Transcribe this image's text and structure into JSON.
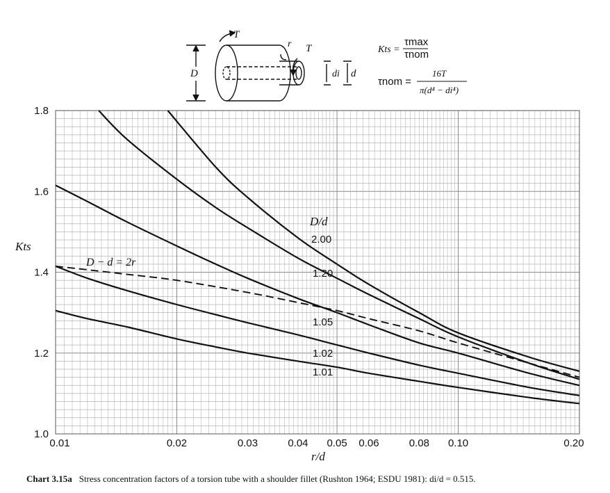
{
  "chart_data": {
    "type": "line",
    "xscale": "log",
    "xlim": [
      0.01,
      0.2
    ],
    "ylim": [
      1.0,
      1.8
    ],
    "xlabel": "r/d",
    "ylabel": "Kts",
    "grid": true,
    "x_ticks": [
      "0.01",
      "0.02",
      "0.03",
      "0.04",
      "0.05",
      "0.06",
      "0.08",
      "0.10",
      "0.20"
    ],
    "y_ticks": [
      "1.0",
      "1.2",
      "1.4",
      "1.6",
      "1.8"
    ],
    "legend_title": "D/d",
    "series": [
      {
        "name": "2.00",
        "style": "solid",
        "points": [
          [
            0.019,
            1.8
          ],
          [
            0.025,
            1.66
          ],
          [
            0.03,
            1.585
          ],
          [
            0.04,
            1.485
          ],
          [
            0.05,
            1.42
          ],
          [
            0.06,
            1.37
          ],
          [
            0.08,
            1.3
          ],
          [
            0.1,
            1.25
          ],
          [
            0.15,
            1.19
          ],
          [
            0.2,
            1.155
          ]
        ]
      },
      {
        "name": "1.20",
        "style": "solid",
        "points": [
          [
            0.0128,
            1.8
          ],
          [
            0.015,
            1.73
          ],
          [
            0.02,
            1.63
          ],
          [
            0.025,
            1.56
          ],
          [
            0.03,
            1.51
          ],
          [
            0.04,
            1.435
          ],
          [
            0.05,
            1.385
          ],
          [
            0.06,
            1.345
          ],
          [
            0.08,
            1.285
          ],
          [
            0.1,
            1.24
          ],
          [
            0.15,
            1.175
          ],
          [
            0.2,
            1.135
          ]
        ]
      },
      {
        "name": "1.05",
        "style": "solid",
        "points": [
          [
            0.01,
            1.615
          ],
          [
            0.012,
            1.575
          ],
          [
            0.015,
            1.525
          ],
          [
            0.02,
            1.465
          ],
          [
            0.025,
            1.42
          ],
          [
            0.03,
            1.385
          ],
          [
            0.04,
            1.335
          ],
          [
            0.05,
            1.3
          ],
          [
            0.06,
            1.27
          ],
          [
            0.08,
            1.225
          ],
          [
            0.1,
            1.2
          ],
          [
            0.15,
            1.15
          ],
          [
            0.2,
            1.12
          ]
        ]
      },
      {
        "name": "1.02",
        "style": "solid",
        "points": [
          [
            0.01,
            1.415
          ],
          [
            0.012,
            1.385
          ],
          [
            0.015,
            1.355
          ],
          [
            0.02,
            1.32
          ],
          [
            0.025,
            1.295
          ],
          [
            0.03,
            1.275
          ],
          [
            0.04,
            1.245
          ],
          [
            0.05,
            1.22
          ],
          [
            0.06,
            1.2
          ],
          [
            0.08,
            1.17
          ],
          [
            0.1,
            1.15
          ],
          [
            0.15,
            1.115
          ],
          [
            0.2,
            1.095
          ]
        ]
      },
      {
        "name": "1.01",
        "style": "solid",
        "points": [
          [
            0.01,
            1.305
          ],
          [
            0.012,
            1.285
          ],
          [
            0.015,
            1.265
          ],
          [
            0.02,
            1.235
          ],
          [
            0.025,
            1.215
          ],
          [
            0.03,
            1.2
          ],
          [
            0.04,
            1.18
          ],
          [
            0.05,
            1.165
          ],
          [
            0.06,
            1.15
          ],
          [
            0.08,
            1.13
          ],
          [
            0.1,
            1.115
          ],
          [
            0.15,
            1.09
          ],
          [
            0.2,
            1.075
          ]
        ]
      },
      {
        "name": "D − d = 2r",
        "style": "dashed",
        "points": [
          [
            0.01,
            1.415
          ],
          [
            0.015,
            1.395
          ],
          [
            0.02,
            1.38
          ],
          [
            0.03,
            1.35
          ],
          [
            0.04,
            1.325
          ],
          [
            0.05,
            1.305
          ],
          [
            0.06,
            1.285
          ],
          [
            0.08,
            1.255
          ],
          [
            0.1,
            1.225
          ],
          [
            0.15,
            1.175
          ],
          [
            0.2,
            1.14
          ]
        ]
      }
    ]
  },
  "diagram": {
    "torque_label": "T",
    "radius_label": "r",
    "outer_label": "D",
    "inner_label": "d",
    "bore_label": "di"
  },
  "formulas": {
    "kts_lhs": "Kts =",
    "kts_num": "τmax",
    "kts_den": "τnom",
    "tau_lhs": "τnom =",
    "tau_num": "16T",
    "tau_den": "π(d⁴ − di⁴)"
  },
  "caption": {
    "label": "Chart 3.15a",
    "text": "Stress concentration factors of a torsion tube with a shoulder fillet (Rushton 1964; ESDU 1981): di/d = 0.515."
  },
  "colors": {
    "line": "#111111",
    "grid": "#b5b5b5",
    "grid_major": "#8a8a8a"
  }
}
